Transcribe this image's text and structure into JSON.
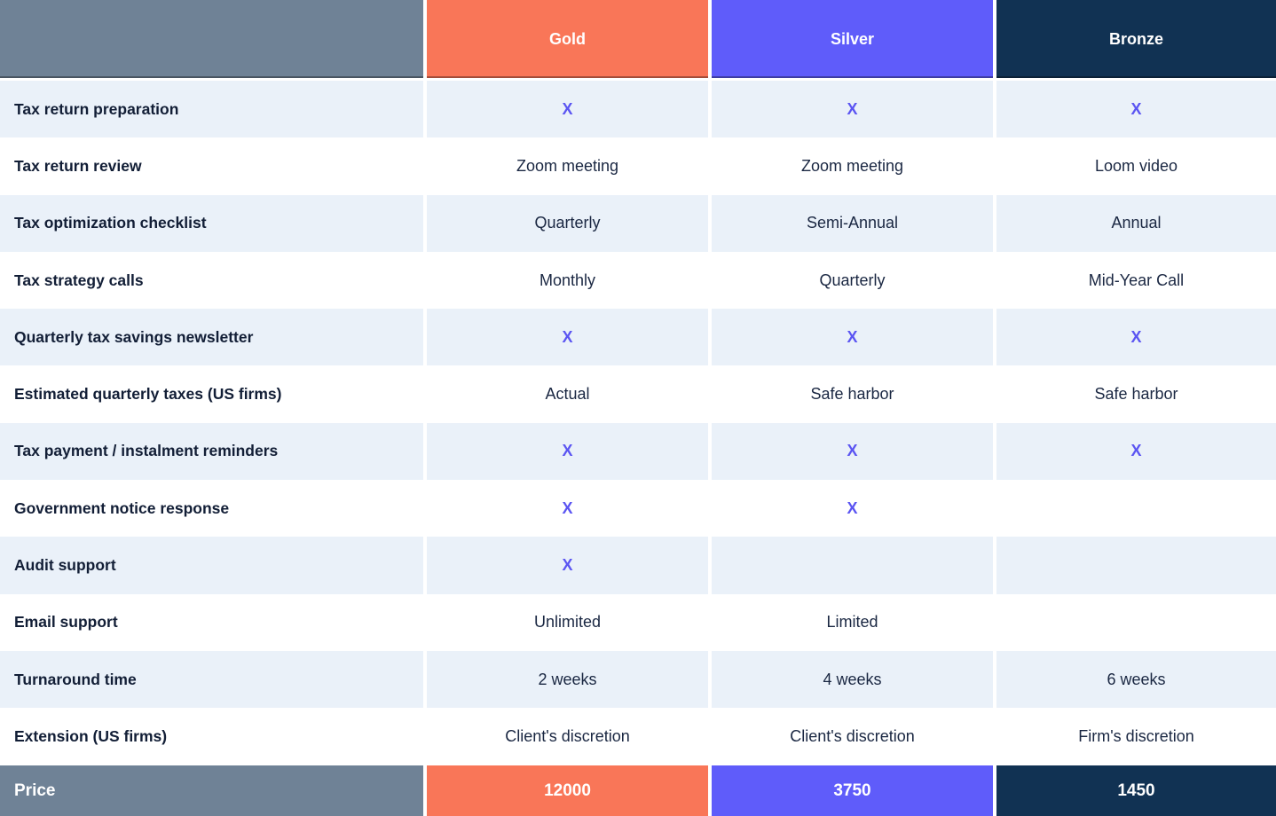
{
  "table": {
    "columns": [
      {
        "label": "",
        "color": "#6F8296"
      },
      {
        "label": "Gold",
        "color": "#F97658"
      },
      {
        "label": "Silver",
        "color": "#5F5CFA"
      },
      {
        "label": "Bronze",
        "color": "#113253"
      }
    ],
    "rows": [
      {
        "label": "Tax return preparation",
        "cells": [
          "X",
          "X",
          "X"
        ]
      },
      {
        "label": "Tax return review",
        "cells": [
          "Zoom meeting",
          "Zoom meeting",
          "Loom video"
        ]
      },
      {
        "label": "Tax optimization checklist",
        "cells": [
          "Quarterly",
          "Semi-Annual",
          "Annual"
        ]
      },
      {
        "label": "Tax strategy calls",
        "cells": [
          "Monthly",
          "Quarterly",
          "Mid-Year Call"
        ]
      },
      {
        "label": "Quarterly tax savings newsletter",
        "cells": [
          "X",
          "X",
          "X"
        ]
      },
      {
        "label": "Estimated quarterly taxes (US firms)",
        "cells": [
          "Actual",
          "Safe harbor",
          "Safe harbor"
        ]
      },
      {
        "label": "Tax payment / instalment reminders",
        "cells": [
          "X",
          "X",
          "X"
        ]
      },
      {
        "label": "Government notice response",
        "cells": [
          "X",
          "X",
          ""
        ]
      },
      {
        "label": "Audit support",
        "cells": [
          "X",
          "",
          ""
        ]
      },
      {
        "label": "Email support",
        "cells": [
          "Unlimited",
          "Limited",
          ""
        ]
      },
      {
        "label": "Turnaround time",
        "cells": [
          "2 weeks",
          "4 weeks",
          "6 weeks"
        ]
      },
      {
        "label": "Extension (US firms)",
        "cells": [
          "Client's discretion",
          "Client's discretion",
          "Firm's discretion"
        ]
      }
    ],
    "footer": {
      "label": "Price",
      "values": [
        "12000",
        "3750",
        "1450"
      ]
    }
  },
  "colors": {
    "row_alt_background": "#EAF1F9",
    "label_text": "#121E36",
    "value_text": "#1A2742",
    "x_mark": "#5B55F2",
    "header_text": "#FFFFFF"
  }
}
